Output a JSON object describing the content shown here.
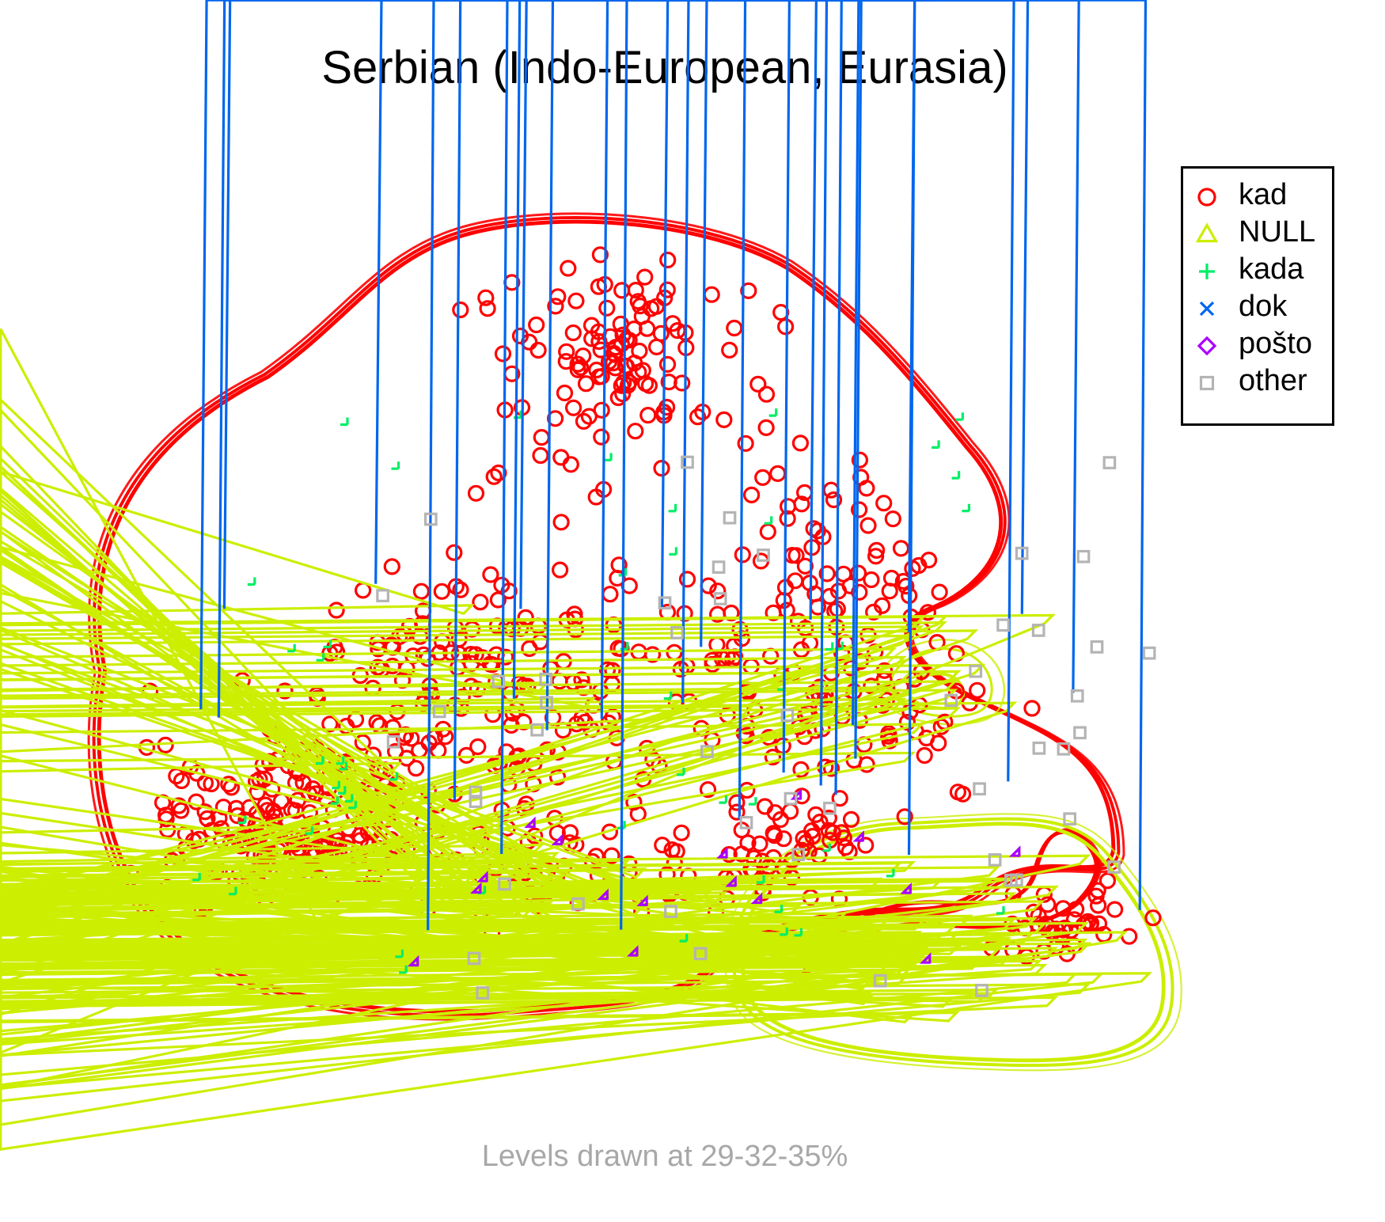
{
  "chart_data": {
    "type": "scatter",
    "title": "Serbian (Indo-European, Eurasia)",
    "footer": "Levels drawn at 29-32-35%",
    "xlabel": "",
    "ylabel": "",
    "axes_shown": false,
    "grid": false,
    "legend_position": "top-right",
    "series": [
      {
        "name": "kad",
        "marker": "circle",
        "color": "#ff0000",
        "contours": true
      },
      {
        "name": "NULL",
        "marker": "triangle",
        "color": "#ccee00",
        "contours": true
      },
      {
        "name": "kada",
        "marker": "plus",
        "color": "#00ee66",
        "contours": false
      },
      {
        "name": "dok",
        "marker": "cross",
        "color": "#0066ee",
        "contours": false
      },
      {
        "name": "pošto",
        "marker": "diamond",
        "color": "#aa00ff",
        "contours": false
      },
      {
        "name": "other",
        "marker": "square",
        "color": "#b4b4b4",
        "contours": false
      }
    ],
    "contour_levels": [
      "29%",
      "32%",
      "35%"
    ]
  }
}
